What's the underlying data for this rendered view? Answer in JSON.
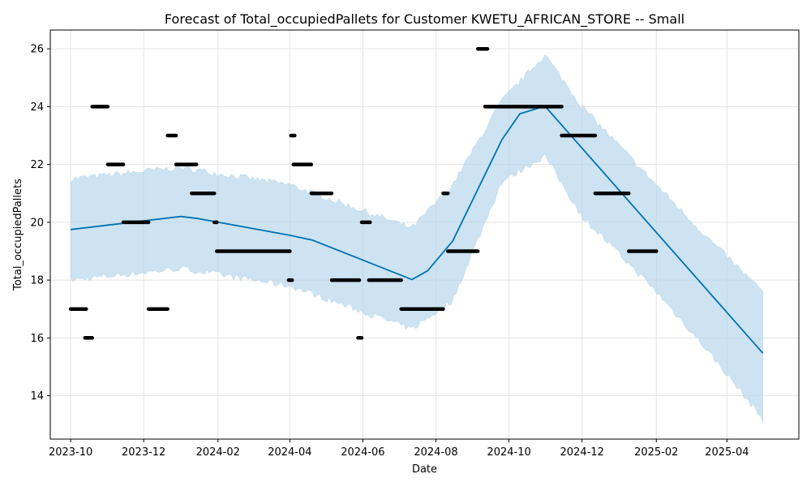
{
  "chart_data": {
    "type": "line",
    "title": "Forecast of Total_occupiedPallets for Customer KWETU_AFRICAN_STORE -- Small",
    "xlabel": "Date",
    "ylabel": "Total_occupiedPallets",
    "x_ticks": [
      "2023-10",
      "2023-12",
      "2024-02",
      "2024-04",
      "2024-06",
      "2024-08",
      "2024-10",
      "2024-12",
      "2025-02",
      "2025-04"
    ],
    "y_ticks": [
      14,
      16,
      18,
      20,
      22,
      24,
      26
    ],
    "xlim": [
      "2023-09-14",
      "2025-05-31"
    ],
    "ylim": [
      12.5,
      26.65
    ],
    "grid": true,
    "colors": {
      "forecast": "#0072B2",
      "interval": "#b6d6ea",
      "observed": "#000000"
    },
    "series": [
      {
        "kind": "forecast",
        "x": [
          "2023-10-01",
          "2024-01-01",
          "2024-01-15",
          "2024-04-01",
          "2024-04-20",
          "2024-07-12",
          "2024-07-25",
          "2024-08-15",
          "2024-09-25",
          "2024-10-10",
          "2024-10-31",
          "2025-05-01"
        ],
        "y": [
          19.75,
          20.2,
          20.13,
          19.55,
          19.38,
          18.02,
          18.32,
          19.35,
          22.85,
          23.75,
          24.02,
          15.47
        ]
      },
      {
        "kind": "interval",
        "x": [
          "2023-10-01",
          "2024-01-01",
          "2024-04-01",
          "2024-07-12",
          "2024-08-15",
          "2024-09-25",
          "2024-10-31",
          "2024-12-01",
          "2025-02-01",
          "2025-03-15",
          "2025-05-01"
        ],
        "upper": [
          21.5,
          21.9,
          21.3,
          19.8,
          21.3,
          24.2,
          25.8,
          24.0,
          21.3,
          19.5,
          17.6
        ],
        "lower": [
          18.0,
          18.4,
          17.8,
          16.3,
          17.3,
          21.4,
          22.3,
          20.2,
          17.6,
          15.6,
          13.2
        ]
      },
      {
        "kind": "observed",
        "segments": [
          {
            "start": "2023-10-01",
            "end": "2023-10-14",
            "value": 17
          },
          {
            "start": "2023-10-13",
            "end": "2023-10-19",
            "value": 16
          },
          {
            "start": "2023-10-19",
            "end": "2023-11-01",
            "value": 24
          },
          {
            "start": "2023-11-01",
            "end": "2023-11-14",
            "value": 22
          },
          {
            "start": "2023-11-14",
            "end": "2023-12-05",
            "value": 20
          },
          {
            "start": "2023-12-05",
            "end": "2023-12-21",
            "value": 17
          },
          {
            "start": "2023-12-21",
            "end": "2023-12-28",
            "value": 23
          },
          {
            "start": "2023-12-28",
            "end": "2024-01-14",
            "value": 22
          },
          {
            "start": "2024-01-10",
            "end": "2024-01-29",
            "value": 21
          },
          {
            "start": "2024-01-29",
            "end": "2024-01-31",
            "value": 20
          },
          {
            "start": "2024-01-31",
            "end": "2024-04-01",
            "value": 19
          },
          {
            "start": "2024-03-31",
            "end": "2024-04-03",
            "value": 18
          },
          {
            "start": "2024-04-02",
            "end": "2024-04-05",
            "value": 23
          },
          {
            "start": "2024-04-04",
            "end": "2024-04-19",
            "value": 22
          },
          {
            "start": "2024-04-19",
            "end": "2024-05-06",
            "value": 21
          },
          {
            "start": "2024-05-06",
            "end": "2024-05-29",
            "value": 18
          },
          {
            "start": "2024-05-28",
            "end": "2024-05-31",
            "value": 16
          },
          {
            "start": "2024-05-31",
            "end": "2024-06-07",
            "value": 20
          },
          {
            "start": "2024-06-06",
            "end": "2024-07-03",
            "value": 18
          },
          {
            "start": "2024-07-03",
            "end": "2024-08-07",
            "value": 17
          },
          {
            "start": "2024-08-07",
            "end": "2024-08-11",
            "value": 21
          },
          {
            "start": "2024-08-11",
            "end": "2024-09-05",
            "value": 19
          },
          {
            "start": "2024-09-05",
            "end": "2024-09-13",
            "value": 26
          },
          {
            "start": "2024-09-11",
            "end": "2024-11-14",
            "value": 24
          },
          {
            "start": "2024-11-14",
            "end": "2024-12-12",
            "value": 23
          },
          {
            "start": "2024-12-12",
            "end": "2025-01-09",
            "value": 21
          },
          {
            "start": "2025-01-09",
            "end": "2025-02-01",
            "value": 19
          }
        ]
      }
    ]
  }
}
